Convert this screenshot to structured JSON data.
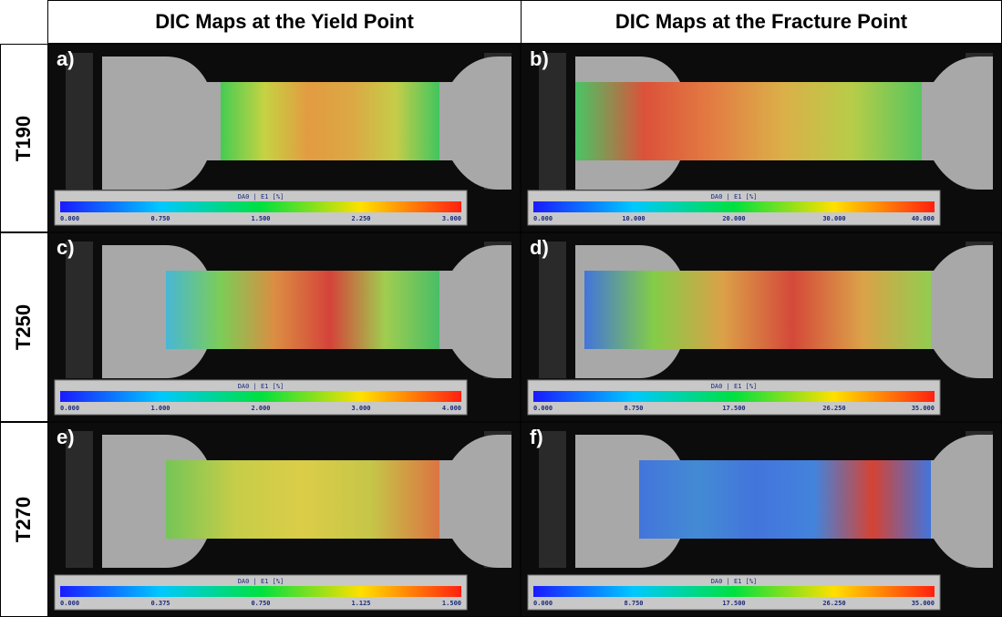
{
  "header": {
    "columns": [
      "DIC Maps at the Yield Point",
      "DIC Maps at the Fracture Point"
    ]
  },
  "rows": [
    {
      "label": "T190",
      "panels": [
        {
          "tag": "a)",
          "colorbar": {
            "title": "DA0 | E1 [%]",
            "ticks": [
              "0.000",
              "0.750",
              "1.500",
              "2.250",
              "3.000"
            ]
          }
        },
        {
          "tag": "b)",
          "colorbar": {
            "title": "DA0 | E1 [%]",
            "ticks": [
              "0.000",
              "10.000",
              "20.000",
              "30.000",
              "40.000"
            ]
          }
        }
      ]
    },
    {
      "label": "T250",
      "panels": [
        {
          "tag": "c)",
          "colorbar": {
            "title": "DA0 | E1 [%]",
            "ticks": [
              "0.000",
              "1.000",
              "2.000",
              "3.000",
              "4.000"
            ]
          }
        },
        {
          "tag": "d)",
          "colorbar": {
            "title": "DA0 | E1 [%]",
            "ticks": [
              "0.000",
              "8.750",
              "17.500",
              "26.250",
              "35.000"
            ]
          }
        }
      ]
    },
    {
      "label": "T270",
      "panels": [
        {
          "tag": "e)",
          "colorbar": {
            "title": "DA0 | E1 [%]",
            "ticks": [
              "0.000",
              "0.375",
              "0.750",
              "1.125",
              "1.500"
            ]
          }
        },
        {
          "tag": "f)",
          "colorbar": {
            "title": "DA0 | E1 [%]",
            "ticks": [
              "0.000",
              "8.750",
              "17.500",
              "26.250",
              "35.000"
            ]
          }
        }
      ]
    }
  ]
}
